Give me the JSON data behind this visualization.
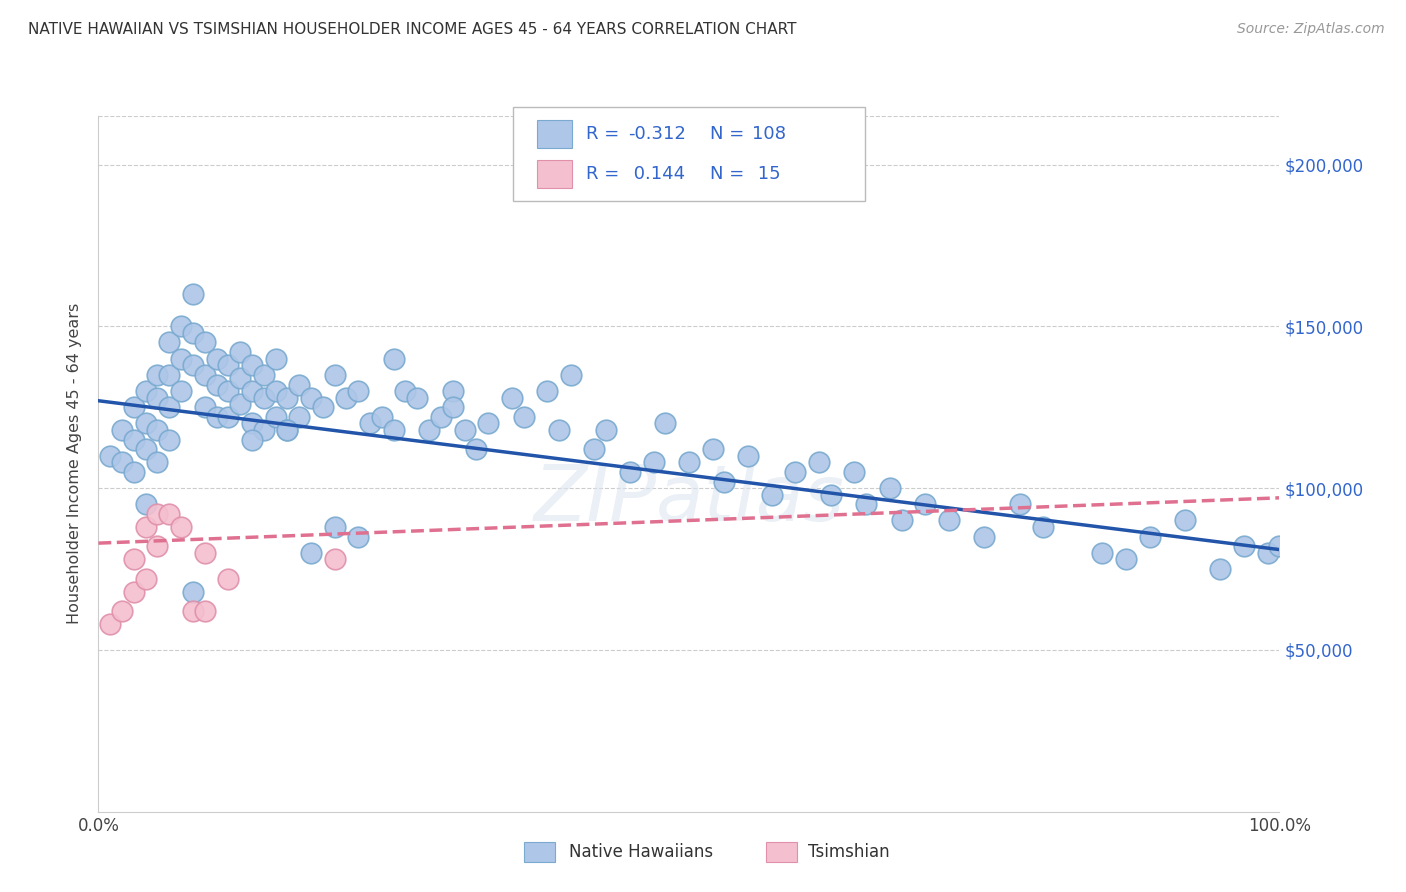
{
  "title": "NATIVE HAWAIIAN VS TSIMSHIAN HOUSEHOLDER INCOME AGES 45 - 64 YEARS CORRELATION CHART",
  "source": "Source: ZipAtlas.com",
  "ylabel": "Householder Income Ages 45 - 64 years",
  "ytick_labels": [
    "$50,000",
    "$100,000",
    "$150,000",
    "$200,000"
  ],
  "ytick_values": [
    50000,
    100000,
    150000,
    200000
  ],
  "ylim": [
    0,
    215000
  ],
  "xlim": [
    0,
    1.0
  ],
  "blue_color": "#aec6e8",
  "blue_edge_color": "#7aaad0",
  "pink_color": "#f4bfcf",
  "pink_edge_color": "#e090aa",
  "blue_line_color": "#2255aa",
  "pink_line_color": "#e07090",
  "watermark": "ZIPatlas",
  "blue_dots_x": [
    0.01,
    0.02,
    0.02,
    0.03,
    0.03,
    0.03,
    0.04,
    0.04,
    0.04,
    0.04,
    0.05,
    0.05,
    0.05,
    0.05,
    0.06,
    0.06,
    0.06,
    0.06,
    0.07,
    0.07,
    0.07,
    0.08,
    0.08,
    0.08,
    0.09,
    0.09,
    0.09,
    0.1,
    0.1,
    0.1,
    0.11,
    0.11,
    0.11,
    0.12,
    0.12,
    0.12,
    0.13,
    0.13,
    0.13,
    0.14,
    0.14,
    0.14,
    0.15,
    0.15,
    0.15,
    0.16,
    0.16,
    0.17,
    0.17,
    0.18,
    0.19,
    0.2,
    0.21,
    0.22,
    0.23,
    0.24,
    0.25,
    0.26,
    0.27,
    0.28,
    0.29,
    0.3,
    0.31,
    0.32,
    0.33,
    0.35,
    0.36,
    0.38,
    0.39,
    0.4,
    0.42,
    0.43,
    0.45,
    0.47,
    0.48,
    0.5,
    0.52,
    0.53,
    0.55,
    0.57,
    0.59,
    0.61,
    0.62,
    0.64,
    0.65,
    0.67,
    0.68,
    0.7,
    0.72,
    0.75,
    0.78,
    0.8,
    0.85,
    0.87,
    0.89,
    0.92,
    0.95,
    0.97,
    0.99,
    1.0,
    0.16,
    0.25,
    0.3,
    0.08,
    0.13,
    0.2,
    0.18,
    0.22
  ],
  "blue_dots_y": [
    110000,
    118000,
    108000,
    125000,
    115000,
    105000,
    130000,
    120000,
    112000,
    95000,
    135000,
    128000,
    118000,
    108000,
    145000,
    135000,
    125000,
    115000,
    150000,
    140000,
    130000,
    160000,
    148000,
    138000,
    145000,
    135000,
    125000,
    140000,
    132000,
    122000,
    138000,
    130000,
    122000,
    142000,
    134000,
    126000,
    138000,
    130000,
    120000,
    135000,
    128000,
    118000,
    140000,
    130000,
    122000,
    128000,
    118000,
    132000,
    122000,
    128000,
    125000,
    135000,
    128000,
    130000,
    120000,
    122000,
    140000,
    130000,
    128000,
    118000,
    122000,
    130000,
    118000,
    112000,
    120000,
    128000,
    122000,
    130000,
    118000,
    135000,
    112000,
    118000,
    105000,
    108000,
    120000,
    108000,
    112000,
    102000,
    110000,
    98000,
    105000,
    108000,
    98000,
    105000,
    95000,
    100000,
    90000,
    95000,
    90000,
    85000,
    95000,
    88000,
    80000,
    78000,
    85000,
    90000,
    75000,
    82000,
    80000,
    82000,
    118000,
    118000,
    125000,
    68000,
    115000,
    88000,
    80000,
    85000
  ],
  "pink_dots_x": [
    0.01,
    0.02,
    0.03,
    0.03,
    0.04,
    0.04,
    0.05,
    0.05,
    0.06,
    0.07,
    0.08,
    0.09,
    0.09,
    0.11,
    0.2
  ],
  "pink_dots_y": [
    58000,
    62000,
    78000,
    68000,
    88000,
    72000,
    92000,
    82000,
    92000,
    88000,
    62000,
    80000,
    62000,
    72000,
    78000
  ],
  "blue_trend_x0": 0.0,
  "blue_trend_y0": 127000,
  "blue_trend_x1": 1.0,
  "blue_trend_y1": 81000,
  "pink_trend_x0": 0.0,
  "pink_trend_y0": 83000,
  "pink_trend_x1": 1.0,
  "pink_trend_y1": 97000
}
